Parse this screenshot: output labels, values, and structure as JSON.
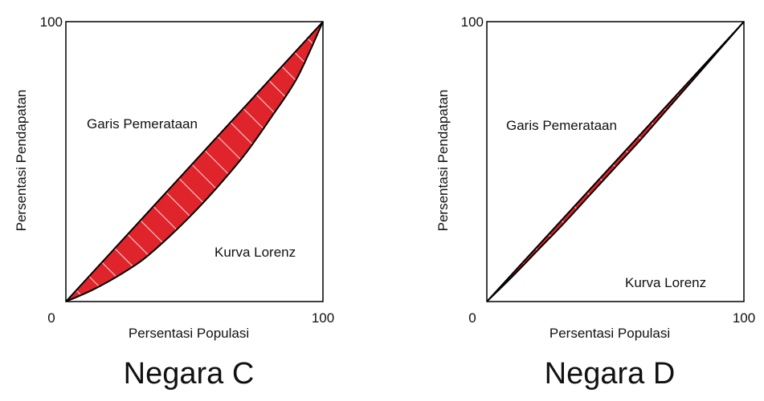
{
  "chart_data": [
    {
      "type": "area",
      "title": "Negara C",
      "xlabel": "Persentasi Populasi",
      "ylabel": "Persentasi Pendapatan",
      "xlim": [
        0,
        100
      ],
      "ylim": [
        0,
        100
      ],
      "x_ticks": [
        "0",
        "100"
      ],
      "y_ticks": [
        "100"
      ],
      "grid": false,
      "fill_color": "#e0242b",
      "hatch_color": "#f4c2c4",
      "series": [
        {
          "name": "Garis Pemerataan",
          "x": [
            0,
            100
          ],
          "y": [
            0,
            100
          ]
        },
        {
          "name": "Kurva Lorenz",
          "x": [
            0,
            10,
            20,
            30,
            40,
            50,
            60,
            70,
            80,
            90,
            100
          ],
          "y": [
            0,
            4,
            9,
            15,
            23,
            32,
            42,
            53,
            66,
            80,
            100
          ]
        }
      ],
      "annotations": [
        {
          "text": "Garis Pemerataan"
        },
        {
          "text": "Kurva Lorenz"
        }
      ]
    },
    {
      "type": "area",
      "title": "Negara D",
      "xlabel": "Persentasi Populasi",
      "ylabel": "Persentasi Pendapatan",
      "xlim": [
        0,
        100
      ],
      "ylim": [
        0,
        100
      ],
      "x_ticks": [
        "0",
        "100"
      ],
      "y_ticks": [
        "100"
      ],
      "grid": false,
      "fill_color": "#e0242b",
      "hatch_color": "#f4c2c4",
      "series": [
        {
          "name": "Garis Pemerataan",
          "x": [
            0,
            100
          ],
          "y": [
            0,
            100
          ]
        },
        {
          "name": "Kurva Lorenz",
          "x": [
            0,
            10,
            20,
            30,
            40,
            50,
            60,
            70,
            80,
            90,
            100
          ],
          "y": [
            0,
            9,
            18.5,
            28,
            38,
            48,
            58,
            68.5,
            79,
            89.5,
            100
          ]
        }
      ],
      "annotations": [
        {
          "text": "Garis Pemerataan"
        },
        {
          "text": "Kurva Lorenz"
        }
      ]
    }
  ]
}
